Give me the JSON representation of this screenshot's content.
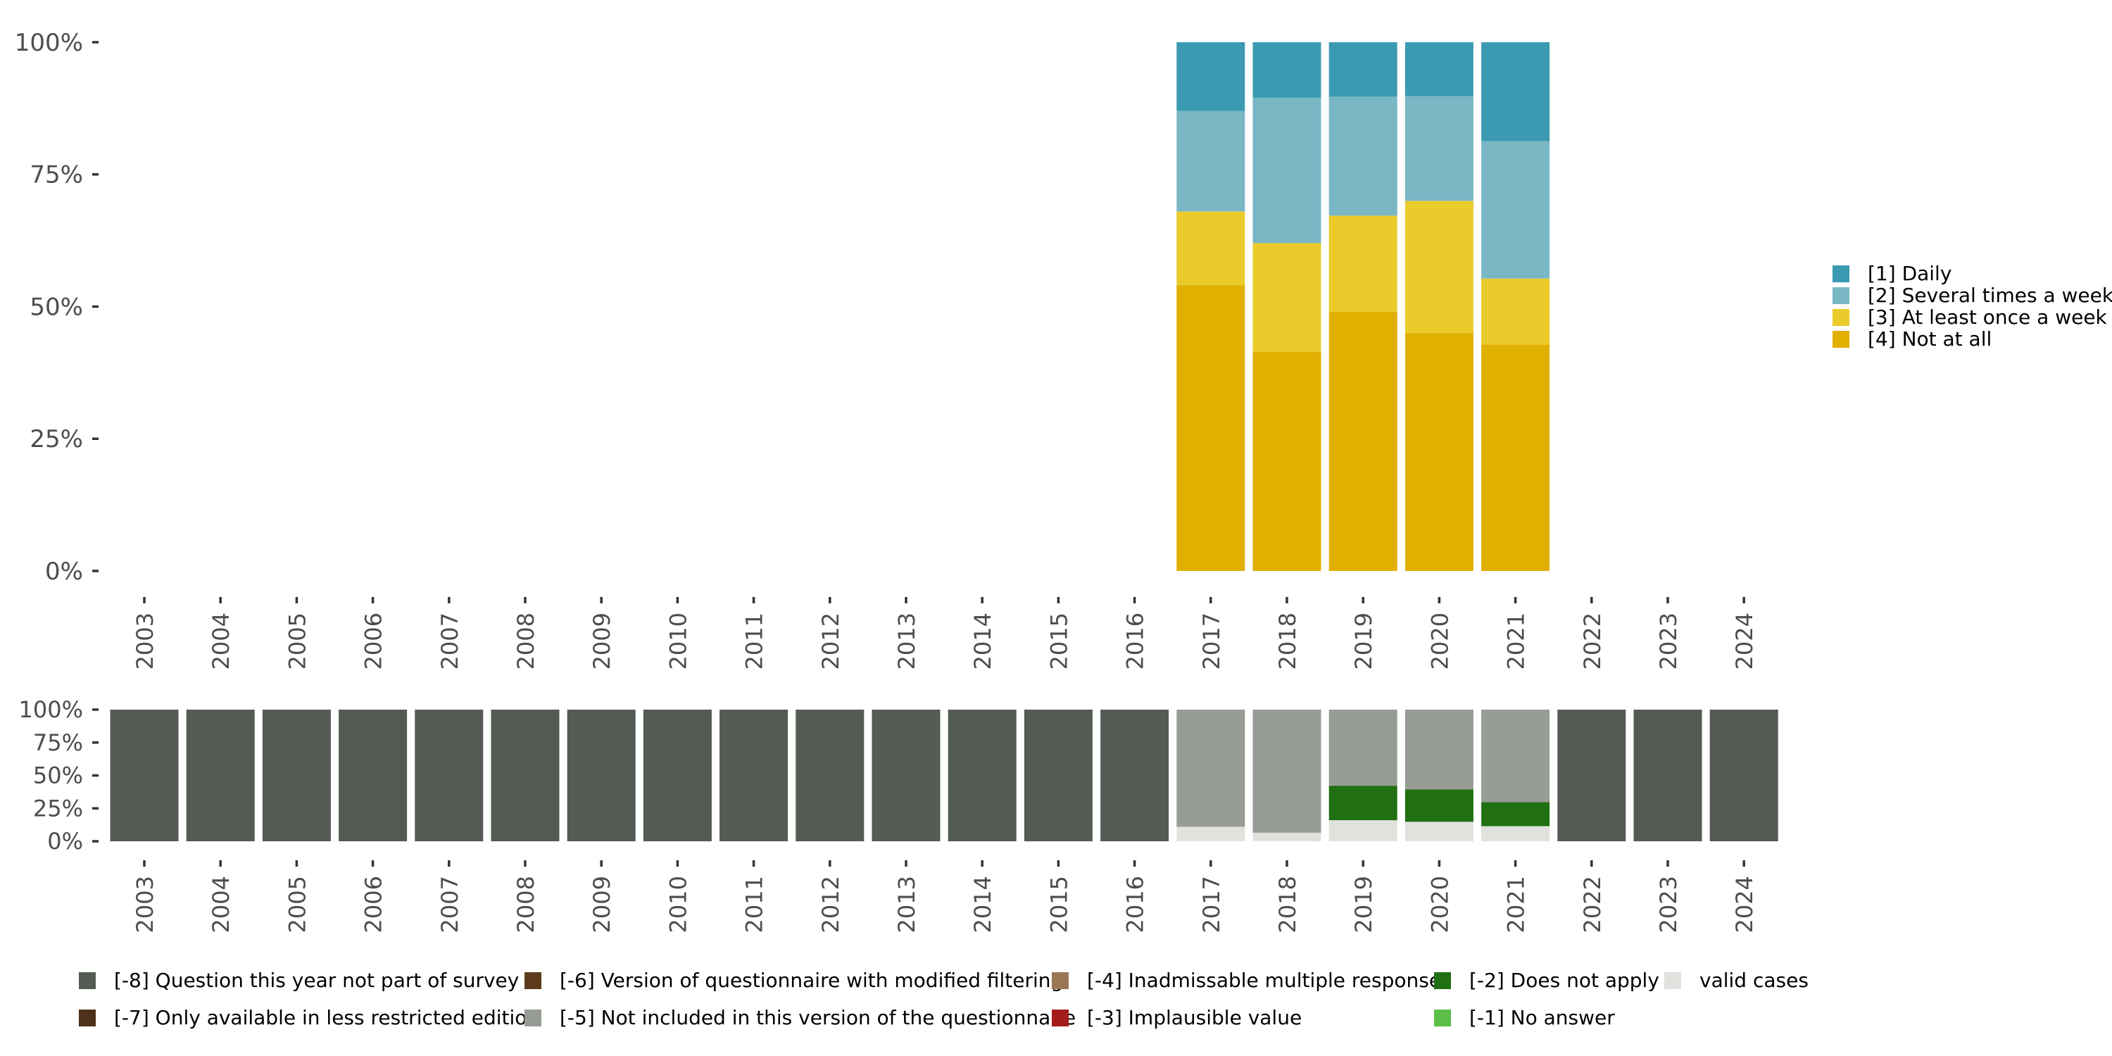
{
  "chart_data": [
    {
      "type": "bar",
      "stacked": true,
      "title": "",
      "xlabel": "",
      "ylabel": "",
      "ylim": [
        0,
        1
      ],
      "y_ticks": [
        "0%",
        "25%",
        "50%",
        "75%",
        "100%"
      ],
      "categories": [
        "2003",
        "2004",
        "2005",
        "2006",
        "2007",
        "2008",
        "2009",
        "2010",
        "2011",
        "2012",
        "2013",
        "2014",
        "2015",
        "2016",
        "2017",
        "2018",
        "2019",
        "2020",
        "2021",
        "2022",
        "2023",
        "2024"
      ],
      "series": [
        {
          "name": "[4] Not at all",
          "color": "#E0AF00",
          "values": [
            null,
            null,
            null,
            null,
            null,
            null,
            null,
            null,
            null,
            null,
            null,
            null,
            null,
            null,
            0.54,
            0.415,
            0.49,
            0.45,
            0.428,
            null,
            null,
            null
          ]
        },
        {
          "name": "[3] At least once a week",
          "color": "#EACB2B",
          "values": [
            null,
            null,
            null,
            null,
            null,
            null,
            null,
            null,
            null,
            null,
            null,
            null,
            null,
            null,
            0.14,
            0.205,
            0.182,
            0.25,
            0.125,
            null,
            null,
            null
          ]
        },
        {
          "name": "[2] Several times a week",
          "color": "#79B7C5",
          "values": [
            null,
            null,
            null,
            null,
            null,
            null,
            null,
            null,
            null,
            null,
            null,
            null,
            null,
            null,
            0.19,
            0.275,
            0.225,
            0.198,
            0.26,
            null,
            null,
            null
          ]
        },
        {
          "name": "[1] Daily",
          "color": "#3B9AB2",
          "values": [
            null,
            null,
            null,
            null,
            null,
            null,
            null,
            null,
            null,
            null,
            null,
            null,
            null,
            null,
            0.13,
            0.105,
            0.103,
            0.102,
            0.187,
            null,
            null,
            null
          ]
        }
      ],
      "legend": "right"
    },
    {
      "type": "bar",
      "stacked": true,
      "title": "",
      "xlabel": "",
      "ylabel": "",
      "ylim": [
        0,
        1
      ],
      "y_ticks": [
        "0%",
        "25%",
        "50%",
        "75%",
        "100%"
      ],
      "categories": [
        "2003",
        "2004",
        "2005",
        "2006",
        "2007",
        "2008",
        "2009",
        "2010",
        "2011",
        "2012",
        "2013",
        "2014",
        "2015",
        "2016",
        "2017",
        "2018",
        "2019",
        "2020",
        "2021",
        "2022",
        "2023",
        "2024"
      ],
      "series": [
        {
          "name": "valid cases",
          "color": "#E0E3DD",
          "values": [
            0,
            0,
            0,
            0,
            0,
            0,
            0,
            0,
            0,
            0,
            0,
            0,
            0,
            0,
            0.11,
            0.065,
            0.16,
            0.148,
            0.115,
            0,
            0,
            0
          ]
        },
        {
          "name": "[-1] No answer",
          "color": "#5BBE46",
          "values": [
            0,
            0,
            0,
            0,
            0,
            0,
            0,
            0,
            0,
            0,
            0,
            0,
            0,
            0,
            0,
            0,
            0,
            0,
            0,
            0,
            0,
            0
          ]
        },
        {
          "name": "[-2] Does not apply",
          "color": "#206F13",
          "values": [
            0,
            0,
            0,
            0,
            0,
            0,
            0,
            0,
            0,
            0,
            0,
            0,
            0,
            0,
            0,
            0,
            0.262,
            0.245,
            0.182,
            0,
            0,
            0
          ]
        },
        {
          "name": "[-3] Implausible value",
          "color": "#A51C1C",
          "values": [
            0,
            0,
            0,
            0,
            0,
            0,
            0,
            0,
            0,
            0,
            0,
            0,
            0,
            0,
            0,
            0,
            0,
            0,
            0,
            0,
            0,
            0
          ]
        },
        {
          "name": "[-4] Inadmissable multiple response",
          "color": "#9B7654",
          "values": [
            0,
            0,
            0,
            0,
            0,
            0,
            0,
            0,
            0,
            0,
            0,
            0,
            0,
            0,
            0,
            0,
            0,
            0,
            0,
            0,
            0,
            0
          ]
        },
        {
          "name": "[-5] Not included in this version of the questionnaire",
          "color": "#979C94",
          "values": [
            0,
            0,
            0,
            0,
            0,
            0,
            0,
            0,
            0,
            0,
            0,
            0,
            0,
            0,
            0.89,
            0.935,
            0.578,
            0.607,
            0.703,
            0,
            0,
            0
          ]
        },
        {
          "name": "[-6] Version of questionnaire with modified filtering",
          "color": "#5C3A1A",
          "values": [
            0,
            0,
            0,
            0,
            0,
            0,
            0,
            0,
            0,
            0,
            0,
            0,
            0,
            0,
            0,
            0,
            0,
            0,
            0,
            0,
            0,
            0
          ]
        },
        {
          "name": "[-7] Only available in less restricted edition",
          "color": "#4F3119",
          "values": [
            0,
            0,
            0,
            0,
            0,
            0,
            0,
            0,
            0,
            0,
            0,
            0,
            0,
            0,
            0,
            0,
            0,
            0,
            0,
            0,
            0,
            0
          ]
        },
        {
          "name": "[-8] Question this year not part of survey",
          "color": "#535B53",
          "values": [
            1,
            1,
            1,
            1,
            1,
            1,
            1,
            1,
            1,
            1,
            1,
            1,
            1,
            1,
            0,
            0,
            0,
            0,
            0,
            1,
            1,
            1
          ]
        }
      ],
      "legend": "bottom",
      "legend_order": [
        "[-8] Question this year not part of survey",
        "[-7] Only available in less restricted edition",
        "[-6] Version of questionnaire with modified filtering",
        "[-5] Not included in this version of the questionnaire",
        "[-4] Inadmissable multiple response",
        "[-3] Implausible value",
        "[-2] Does not apply",
        "[-1] No answer",
        "valid cases"
      ]
    }
  ]
}
